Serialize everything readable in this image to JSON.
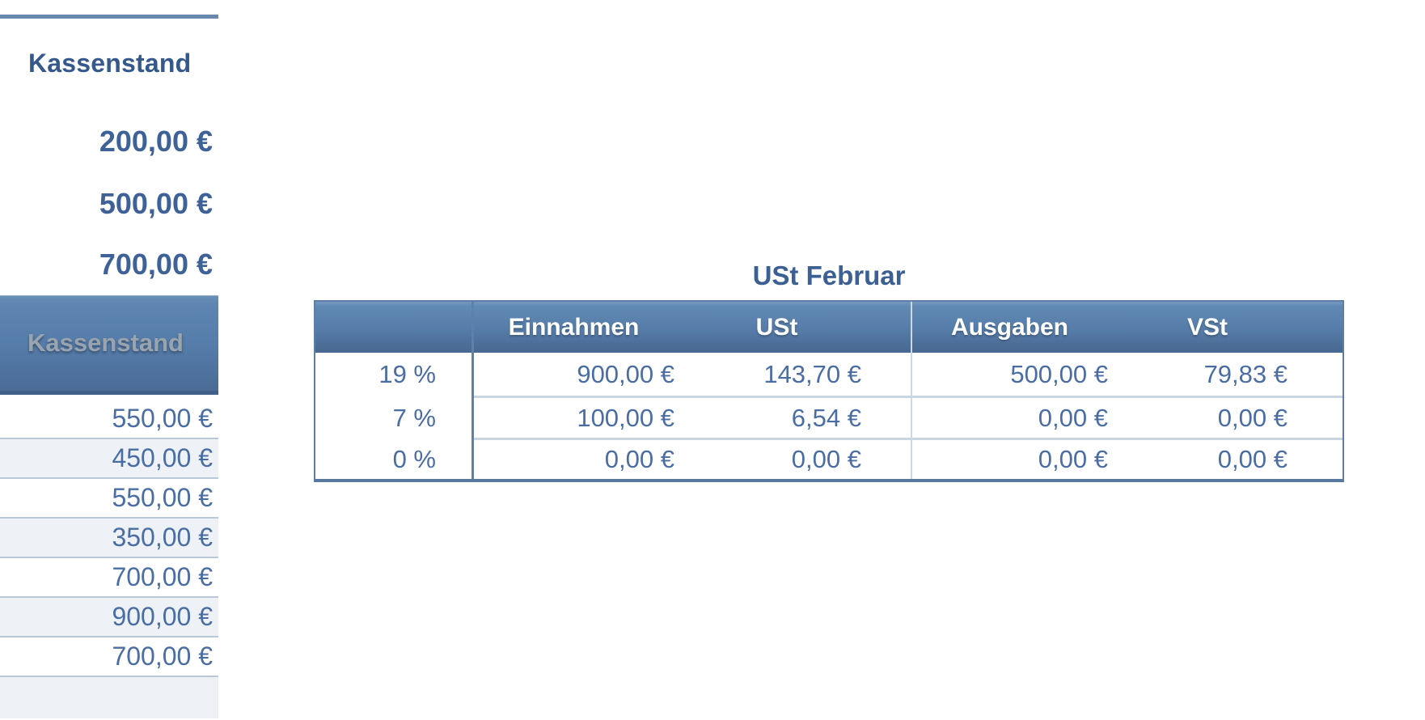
{
  "left_panel": {
    "heading": "Kassenstand",
    "summary_values": [
      "200,00 €",
      "500,00 €",
      "700,00 €"
    ],
    "column_header": "Kassenstand",
    "rows": [
      "550,00 €",
      "450,00 €",
      "550,00 €",
      "350,00 €",
      "700,00 €",
      "900,00 €",
      "700,00 €"
    ]
  },
  "ust_table": {
    "title": "USt Februar",
    "column_headers": [
      "Einnahmen",
      "USt",
      "Ausgaben",
      "VSt"
    ],
    "rows": [
      {
        "rate": "19 %",
        "einnahmen": "900,00 €",
        "ust": "143,70 €",
        "ausgaben": "500,00 €",
        "vst": "79,83 €"
      },
      {
        "rate": "7 %",
        "einnahmen": "100,00 €",
        "ust": "6,54 €",
        "ausgaben": "0,00 €",
        "vst": "0,00 €"
      },
      {
        "rate": "0 %",
        "einnahmen": "0,00 €",
        "ust": "0,00 €",
        "ausgaben": "0,00 €",
        "vst": "0,00 €"
      }
    ]
  },
  "colors": {
    "accent_rule": "#6787ac",
    "header_gradient_top": "#6089b3",
    "header_gradient_bottom": "#476890",
    "table_border": "#5d7ea7",
    "row_separator": "#b9c8d9",
    "alt_row_bg": "#eef2f6",
    "value_text": "#4a6da3",
    "bold_heading_text": "#35598c",
    "embossed_header_text": "#99a4ae"
  }
}
